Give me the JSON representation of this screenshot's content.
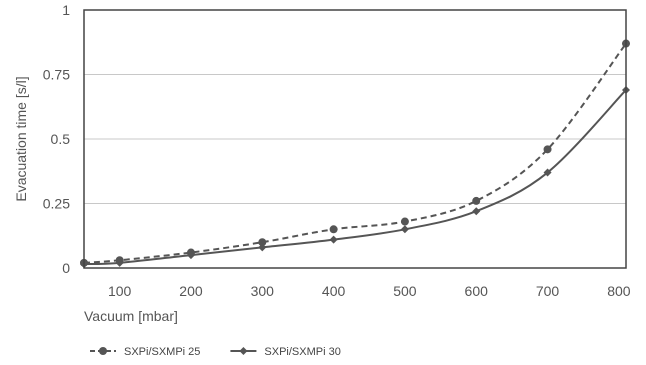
{
  "chart_data": {
    "type": "line",
    "title": "",
    "xlabel": "Vacuum [mbar]",
    "ylabel": "Evacuation time [s/l]",
    "xlim": [
      50,
      810
    ],
    "ylim": [
      0,
      1
    ],
    "x_ticks": [
      100,
      200,
      300,
      400,
      500,
      600,
      700,
      800
    ],
    "y_ticks": [
      0,
      0.25,
      0.5,
      0.75,
      1
    ],
    "y_tick_labels": [
      "0",
      "0.25",
      "0.5",
      "0.75",
      "1"
    ],
    "grid": "horizontal",
    "legend_position": "bottom-left",
    "series": [
      {
        "name": "SXPi/SXMPi 25",
        "line_style": "dashed",
        "marker": "circle",
        "color": "#555555",
        "x": [
          50,
          100,
          200,
          300,
          400,
          500,
          600,
          700,
          810
        ],
        "y": [
          0.02,
          0.03,
          0.06,
          0.1,
          0.15,
          0.18,
          0.26,
          0.46,
          0.87
        ]
      },
      {
        "name": "SXPi/SXMPi 30",
        "line_style": "solid",
        "marker": "diamond",
        "color": "#555555",
        "x": [
          50,
          100,
          200,
          300,
          400,
          500,
          600,
          700,
          810
        ],
        "y": [
          0.015,
          0.02,
          0.05,
          0.08,
          0.11,
          0.15,
          0.22,
          0.37,
          0.69
        ]
      }
    ]
  }
}
